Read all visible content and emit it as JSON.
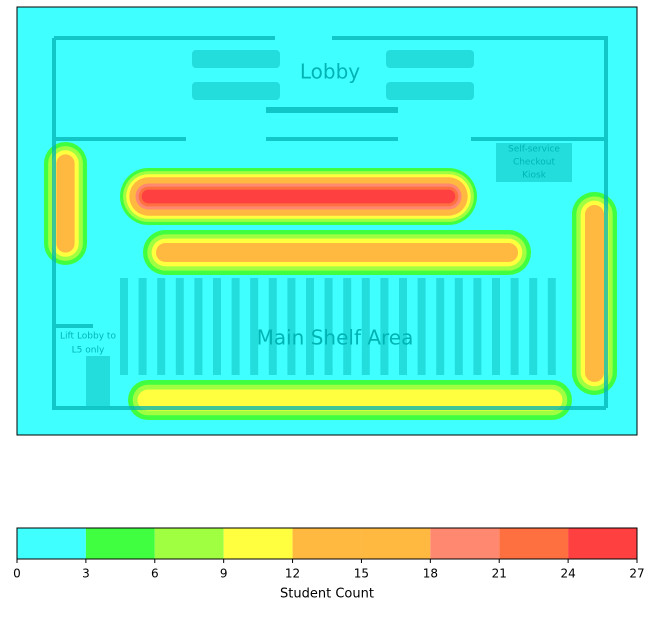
{
  "chart_data": {
    "type": "heatmap",
    "colorbar_label": "Student Count",
    "levels": [
      0,
      3,
      6,
      9,
      12,
      15,
      18,
      21,
      24,
      27
    ],
    "colors": [
      "#40ffff",
      "#40ff40",
      "#a0ff40",
      "#ffff40",
      "#ffb840",
      "#ffb840",
      "#ff8870",
      "#ff7040",
      "#ff4040"
    ],
    "values": [
      15,
      27,
      15,
      15,
      12
    ],
    "annotations": [
      "Lobby",
      "Main Shelf Area",
      "Self-service",
      "Checkout",
      "Kiosk",
      "Lift Lobby to",
      "L5 only"
    ]
  }
}
